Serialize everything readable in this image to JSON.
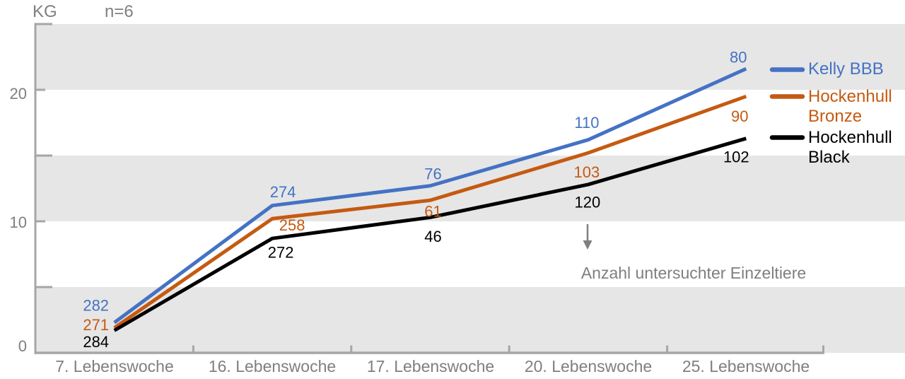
{
  "header": {
    "y_axis_unit": "KG",
    "sample_note": "n=6"
  },
  "annotation": {
    "text": "Anzahl untersuchter Einzeltiere",
    "arrow_icon": "down-arrow"
  },
  "legend": [
    {
      "name": "Kelly BBB",
      "color": "#4472c4",
      "lines": [
        "Kelly BBB",
        ""
      ]
    },
    {
      "name": "Hockenhull Bronze",
      "color": "#c55a11",
      "lines": [
        "Hockenhull",
        "Bronze"
      ]
    },
    {
      "name": "Hockenhull Black",
      "color": "#000000",
      "lines": [
        "Hockenhull",
        "Black"
      ]
    }
  ],
  "colors": {
    "band": "#e6e6e6",
    "axis": "#a6a6a6",
    "muted_text": "#7f7f7f"
  },
  "chart_data": {
    "type": "line",
    "title": "",
    "ylabel": "KG",
    "xlabel": "",
    "ylim": [
      0,
      25
    ],
    "grid": "horizontal-bands",
    "legend_position": "right",
    "categories": [
      "7. Lebenswoche",
      "16. Lebenswoche",
      "17. Lebenswoche",
      "20. Lebenswoche",
      "25. Lebenswoche"
    ],
    "y_tick_labels": [
      "0",
      "10",
      "20"
    ],
    "y_ticks_labeled_kg": [
      0,
      10,
      20
    ],
    "y_ticks_unlabeled_kg": [
      5,
      15,
      25
    ],
    "grid_bands_kg": [
      [
        0,
        5
      ],
      [
        10,
        15
      ],
      [
        20,
        25
      ]
    ],
    "counts_meaning": "Anzahl untersuchter Einzeltiere",
    "series": [
      {
        "name": "Kelly BBB",
        "color": "#4472c4",
        "values_kg": [
          2.3,
          11.2,
          12.7,
          16.2,
          21.6
        ],
        "counts": [
          282,
          274,
          76,
          110,
          80
        ],
        "count_offsets": [
          [
            -26,
            -24
          ],
          [
            15,
            -19
          ],
          [
            4,
            -17
          ],
          [
            -2,
            -24
          ],
          [
            -11,
            -16
          ]
        ]
      },
      {
        "name": "Hockenhull Bronze",
        "color": "#c55a11",
        "values_kg": [
          1.9,
          10.2,
          11.6,
          15.2,
          19.5
        ],
        "counts": [
          271,
          258,
          61,
          103,
          90
        ],
        "count_offsets": [
          [
            -26,
            -4
          ],
          [
            28,
            9
          ],
          [
            4,
            16
          ],
          [
            -2,
            27
          ],
          [
            -9,
            28
          ]
        ]
      },
      {
        "name": "Hockenhull Black",
        "color": "#000000",
        "values_kg": [
          1.7,
          8.7,
          10.3,
          12.8,
          16.3
        ],
        "counts": [
          284,
          272,
          46,
          120,
          102
        ],
        "count_offsets": [
          [
            -26,
            16
          ],
          [
            12,
            20
          ],
          [
            4,
            27
          ],
          [
            -1,
            25
          ],
          [
            -14,
            26
          ]
        ]
      }
    ]
  }
}
